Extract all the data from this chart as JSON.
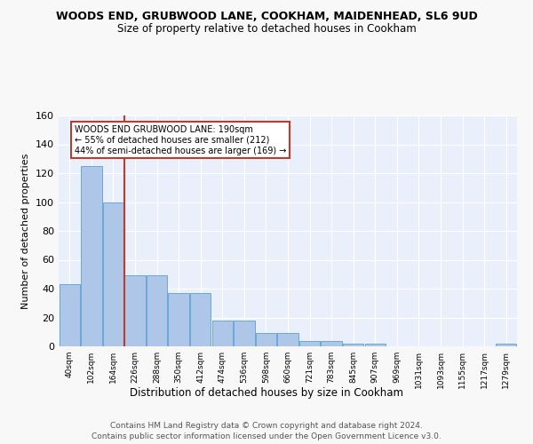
{
  "title": "WOODS END, GRUBWOOD LANE, COOKHAM, MAIDENHEAD, SL6 9UD",
  "subtitle": "Size of property relative to detached houses in Cookham",
  "xlabel": "Distribution of detached houses by size in Cookham",
  "ylabel": "Number of detached properties",
  "footer1": "Contains HM Land Registry data © Crown copyright and database right 2024.",
  "footer2": "Contains public sector information licensed under the Open Government Licence v3.0.",
  "bin_labels": [
    "40sqm",
    "102sqm",
    "164sqm",
    "226sqm",
    "288sqm",
    "350sqm",
    "412sqm",
    "474sqm",
    "536sqm",
    "598sqm",
    "660sqm",
    "721sqm",
    "783sqm",
    "845sqm",
    "907sqm",
    "969sqm",
    "1031sqm",
    "1093sqm",
    "1155sqm",
    "1217sqm",
    "1279sqm"
  ],
  "bar_heights": [
    43,
    125,
    100,
    49,
    49,
    37,
    37,
    18,
    18,
    9,
    9,
    4,
    4,
    2,
    2,
    0,
    0,
    0,
    0,
    0,
    2
  ],
  "bar_color": "#aec6e8",
  "bar_edgecolor": "#5a9fd4",
  "bg_color": "#eaf0fb",
  "grid_color": "#ffffff",
  "property_line_x": 2.5,
  "property_line_color": "#c0392b",
  "annotation_text": "WOODS END GRUBWOOD LANE: 190sqm\n← 55% of detached houses are smaller (212)\n44% of semi-detached houses are larger (169) →",
  "annotation_box_color": "#ffffff",
  "annotation_box_edgecolor": "#c0392b",
  "ylim": [
    0,
    160
  ],
  "yticks": [
    0,
    20,
    40,
    60,
    80,
    100,
    120,
    140,
    160
  ],
  "fig_width": 6.0,
  "fig_height": 5.0,
  "dpi": 100
}
